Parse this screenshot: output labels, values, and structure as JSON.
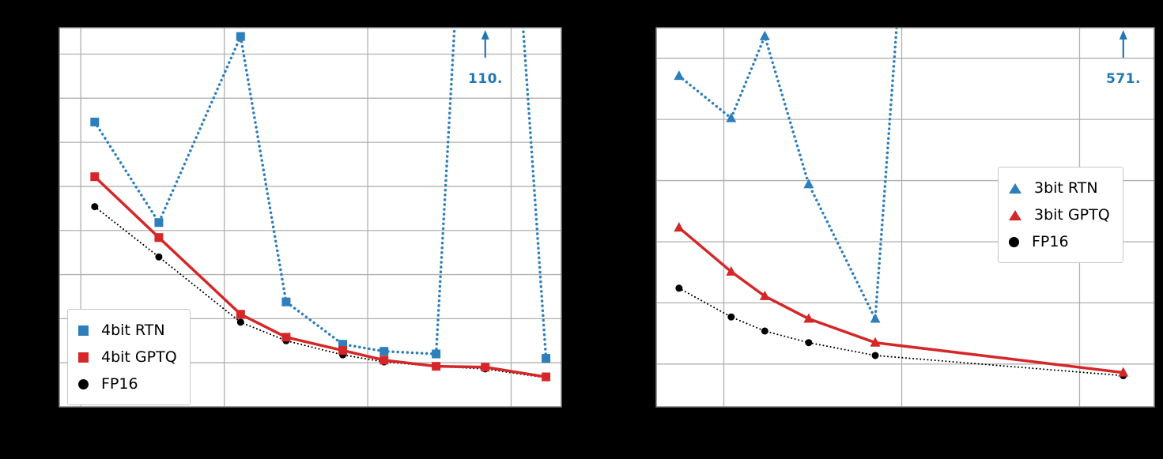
{
  "page": {
    "background_color": "#000000"
  },
  "chart_data": [
    {
      "type": "line",
      "title": "",
      "x_scale": "log",
      "x": [
        0.125,
        0.35,
        1.3,
        2.7,
        6.7,
        13,
        30,
        66,
        175
      ],
      "xlim_log10": [
        -1.15,
        2.35
      ],
      "ylim": [
        5,
        48
      ],
      "x_gridlines": [
        0.1,
        1,
        10,
        100
      ],
      "y_gridlines": [
        10,
        15,
        20,
        25,
        30,
        35,
        40,
        45
      ],
      "grid": true,
      "legend_position": "lower left",
      "series": [
        {
          "name": "4bit RTN",
          "color": "#2e7ebc",
          "line": "dotted",
          "marker": "square",
          "values": [
            37.3,
            25.9,
            47.0,
            16.9,
            12.1,
            11.3,
            11.0,
            110.0,
            10.5
          ]
        },
        {
          "name": "4bit GPTQ",
          "color": "#d62728",
          "line": "solid",
          "marker": "square",
          "values": [
            31.1,
            24.2,
            15.5,
            12.9,
            11.4,
            10.3,
            9.6,
            9.5,
            8.4
          ]
        },
        {
          "name": "FP16",
          "color": "#000000",
          "line": "dotted",
          "marker": "circle",
          "values": [
            27.7,
            22.0,
            14.6,
            12.5,
            10.9,
            10.1,
            9.6,
            9.3,
            8.3
          ]
        }
      ],
      "annotation": {
        "text": "110.",
        "x": 66,
        "color": "#1f77b4"
      }
    },
    {
      "type": "line",
      "title": "",
      "x_scale": "log",
      "x": [
        0.56,
        1.1,
        1.7,
        3,
        7.1,
        176
      ],
      "xlim_log10": [
        -0.38,
        2.42
      ],
      "ylim": [
        3,
        65
      ],
      "x_gridlines": [
        1,
        10,
        100
      ],
      "y_gridlines": [
        10,
        20,
        30,
        40,
        50,
        60
      ],
      "grid": true,
      "legend_position": "center right",
      "series": [
        {
          "name": "3bit RTN",
          "color": "#2e7ebc",
          "line": "dotted",
          "marker": "triangle",
          "values": [
            57.1,
            50.2,
            63.6,
            39.4,
            17.4,
            571.0
          ]
        },
        {
          "name": "3bit GPTQ",
          "color": "#d62728",
          "line": "solid",
          "marker": "triangle",
          "values": [
            32.3,
            25.1,
            21.1,
            17.4,
            13.5,
            8.6
          ]
        },
        {
          "name": "FP16",
          "color": "#000000",
          "line": "dotted",
          "marker": "circle",
          "values": [
            22.4,
            17.7,
            15.4,
            13.5,
            11.4,
            8.1
          ]
        }
      ],
      "annotation": {
        "text": "571.",
        "x": 176,
        "color": "#1f77b4"
      }
    }
  ]
}
